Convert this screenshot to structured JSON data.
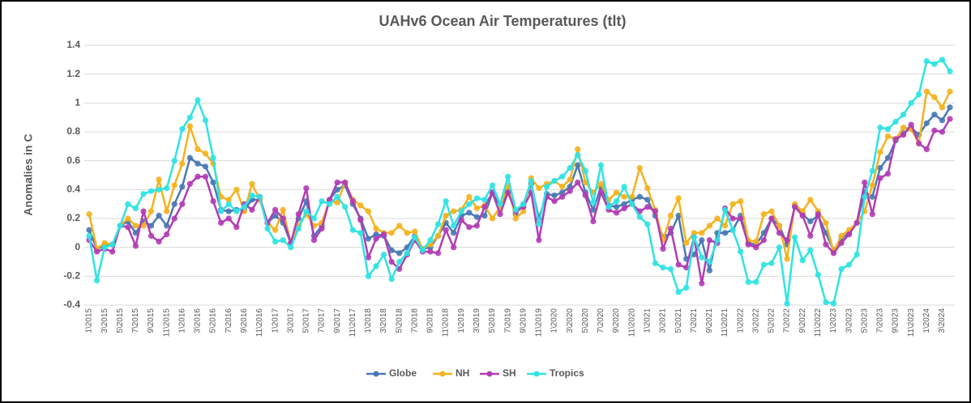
{
  "chart_data": {
    "type": "line",
    "title": "UAHv6 Ocean Air Temperatures (tlt)",
    "y_label": "Anomalies in C",
    "categories": [
      "1\\2015",
      null,
      "3\\2015",
      null,
      "5\\2015",
      null,
      "7\\2015",
      null,
      "9\\2015",
      null,
      "11\\2015",
      null,
      "1\\2016",
      null,
      "3\\2016",
      null,
      "5\\2016",
      null,
      "7\\2016",
      null,
      "9\\2016",
      null,
      "11\\2016",
      null,
      "1\\2017",
      null,
      "3\\2017",
      null,
      "5\\2017",
      null,
      "7\\2017",
      null,
      "9\\2017",
      null,
      "11\\2017",
      null,
      "1\\2018",
      null,
      "3\\2018",
      null,
      "5\\2018",
      null,
      "7\\2018",
      null,
      "9\\2018",
      null,
      "11\\2018",
      null,
      "1\\2019",
      null,
      "3\\2019",
      null,
      "5\\2019",
      null,
      "7\\2019",
      null,
      "9\\2019",
      null,
      "11\\2019",
      null,
      "1\\2020",
      null,
      "3\\2020",
      null,
      "5\\2020",
      null,
      "7\\2020",
      null,
      "9\\2020",
      null,
      "11\\2020",
      null,
      "1\\2021",
      null,
      "3\\2021",
      null,
      "5\\2021",
      null,
      "7\\2021",
      null,
      "9\\2021",
      null,
      "11\\2021",
      null,
      "1\\2022",
      null,
      "3\\2022",
      null,
      "5\\2022",
      null,
      "7\\2022",
      null,
      "9\\2022",
      null,
      "11\\2022",
      null,
      "1\\2023",
      null,
      "3\\2023",
      null,
      "5\\2023",
      null,
      "7\\2023",
      null,
      "9\\2023",
      null,
      "11\\2023",
      null,
      "1\\2024",
      null,
      "3\\2024",
      null
    ],
    "series": [
      {
        "name": "Globe",
        "color": "#4a78b4",
        "values": [
          0.12,
          -0.01,
          0.01,
          0.02,
          0.15,
          0.18,
          0.1,
          0.18,
          0.15,
          0.22,
          0.15,
          0.3,
          0.42,
          0.62,
          0.58,
          0.56,
          0.45,
          0.26,
          0.25,
          0.26,
          0.26,
          0.33,
          0.33,
          0.17,
          0.22,
          0.17,
          0.03,
          0.2,
          0.32,
          0.08,
          0.15,
          0.33,
          0.4,
          0.43,
          0.3,
          0.2,
          0.06,
          0.09,
          0.08,
          -0.02,
          -0.04,
          0.0,
          0.08,
          -0.01,
          0.0,
          0.08,
          0.17,
          0.1,
          0.22,
          0.24,
          0.21,
          0.22,
          0.38,
          0.28,
          0.4,
          0.23,
          0.3,
          0.44,
          0.2,
          0.37,
          0.36,
          0.38,
          0.42,
          0.57,
          0.38,
          0.26,
          0.42,
          0.29,
          0.28,
          0.3,
          0.33,
          0.35,
          0.33,
          0.22,
          0.07,
          0.1,
          0.22,
          -0.08,
          -0.05,
          0.05,
          -0.16,
          0.1,
          0.1,
          0.12,
          0.22,
          0.03,
          0.02,
          0.1,
          0.2,
          0.15,
          0.02,
          0.29,
          0.23,
          0.18,
          0.22,
          0.1,
          -0.02,
          0.06,
          0.1,
          0.17,
          0.38,
          0.35,
          0.55,
          0.62,
          0.74,
          0.79,
          0.83,
          0.78,
          0.86,
          0.92,
          0.88,
          0.97
        ]
      },
      {
        "name": "NH",
        "color": "#f5b21c",
        "values": [
          0.23,
          -0.01,
          0.03,
          0.02,
          0.15,
          0.2,
          0.15,
          0.15,
          0.25,
          0.47,
          0.25,
          0.43,
          0.58,
          0.84,
          0.68,
          0.65,
          0.58,
          0.35,
          0.33,
          0.4,
          0.25,
          0.44,
          0.33,
          0.17,
          0.12,
          0.26,
          0.03,
          0.15,
          0.23,
          0.15,
          0.17,
          0.32,
          0.31,
          0.45,
          0.33,
          0.29,
          0.25,
          0.13,
          0.1,
          0.1,
          0.15,
          0.1,
          0.11,
          -0.01,
          0.02,
          0.08,
          0.22,
          0.25,
          0.26,
          0.35,
          0.27,
          0.29,
          0.2,
          0.28,
          0.43,
          0.2,
          0.25,
          0.48,
          0.41,
          0.44,
          0.46,
          0.42,
          0.47,
          0.68,
          0.45,
          0.38,
          0.44,
          0.33,
          0.38,
          0.35,
          0.35,
          0.55,
          0.41,
          0.26,
          0.05,
          0.22,
          0.34,
          0.03,
          0.1,
          0.1,
          0.15,
          0.2,
          0.15,
          0.3,
          0.32,
          0.05,
          0.04,
          0.23,
          0.25,
          0.15,
          -0.08,
          0.3,
          0.25,
          0.33,
          0.25,
          0.17,
          -0.03,
          0.08,
          0.12,
          0.17,
          0.25,
          0.43,
          0.66,
          0.77,
          0.75,
          0.83,
          0.82,
          0.72,
          1.08,
          1.04,
          0.97,
          1.08
        ]
      },
      {
        "name": "SH",
        "color": "#b23cb5",
        "values": [
          0.05,
          -0.03,
          -0.01,
          -0.03,
          0.15,
          0.14,
          0.01,
          0.25,
          0.08,
          0.04,
          0.09,
          0.2,
          0.3,
          0.44,
          0.49,
          0.49,
          0.32,
          0.17,
          0.2,
          0.14,
          0.3,
          0.26,
          0.35,
          0.17,
          0.26,
          0.2,
          0.03,
          0.23,
          0.41,
          0.05,
          0.13,
          0.33,
          0.45,
          0.45,
          0.32,
          0.19,
          -0.07,
          0.06,
          0.09,
          -0.1,
          -0.15,
          -0.05,
          0.05,
          -0.03,
          -0.03,
          -0.04,
          0.12,
          0.0,
          0.19,
          0.14,
          0.15,
          0.28,
          0.38,
          0.23,
          0.38,
          0.25,
          0.28,
          0.38,
          0.05,
          0.35,
          0.32,
          0.35,
          0.39,
          0.45,
          0.36,
          0.18,
          0.38,
          0.26,
          0.24,
          0.27,
          0.3,
          0.25,
          0.28,
          0.25,
          -0.01,
          0.13,
          -0.12,
          -0.14,
          0.07,
          -0.25,
          0.05,
          0.03,
          0.27,
          0.2,
          0.2,
          0.02,
          0.0,
          0.05,
          0.2,
          0.1,
          0.05,
          0.28,
          0.22,
          0.08,
          0.23,
          0.02,
          -0.04,
          0.03,
          0.09,
          0.17,
          0.45,
          0.23,
          0.48,
          0.51,
          0.75,
          0.78,
          0.85,
          0.72,
          0.68,
          0.81,
          0.8,
          0.89
        ]
      },
      {
        "name": "Tropics",
        "color": "#2fe3e3",
        "values": [
          0.08,
          -0.23,
          0.0,
          0.02,
          0.15,
          0.3,
          0.27,
          0.37,
          0.39,
          0.4,
          0.41,
          0.6,
          0.82,
          0.9,
          1.02,
          0.88,
          0.62,
          0.25,
          0.3,
          0.25,
          0.28,
          0.36,
          0.35,
          0.13,
          0.04,
          0.05,
          0.0,
          0.13,
          0.25,
          0.2,
          0.32,
          0.3,
          0.35,
          0.28,
          0.12,
          0.1,
          -0.2,
          -0.13,
          -0.05,
          -0.22,
          -0.1,
          -0.04,
          0.07,
          -0.02,
          0.05,
          0.16,
          0.32,
          0.15,
          0.25,
          0.3,
          0.34,
          0.33,
          0.43,
          0.3,
          0.49,
          0.26,
          0.3,
          0.46,
          0.16,
          0.42,
          0.46,
          0.49,
          0.55,
          0.64,
          0.53,
          0.31,
          0.57,
          0.28,
          0.32,
          0.42,
          0.3,
          0.21,
          0.16,
          -0.11,
          -0.14,
          -0.15,
          -0.31,
          -0.28,
          0.07,
          -0.07,
          -0.1,
          0.05,
          0.26,
          0.12,
          -0.03,
          -0.24,
          -0.24,
          -0.12,
          -0.11,
          0.0,
          -0.39,
          0.07,
          -0.09,
          -0.02,
          -0.19,
          -0.38,
          -0.39,
          -0.15,
          -0.12,
          -0.05,
          0.35,
          0.53,
          0.83,
          0.82,
          0.87,
          0.92,
          1.0,
          1.06,
          1.29,
          1.27,
          1.3,
          1.22
        ]
      }
    ],
    "ylim": [
      -0.4,
      1.4
    ],
    "yticks": [
      -0.4,
      -0.2,
      0,
      0.2,
      0.4,
      0.6,
      0.8,
      1,
      1.2,
      1.4
    ],
    "grid": true,
    "legend": "bottom"
  }
}
